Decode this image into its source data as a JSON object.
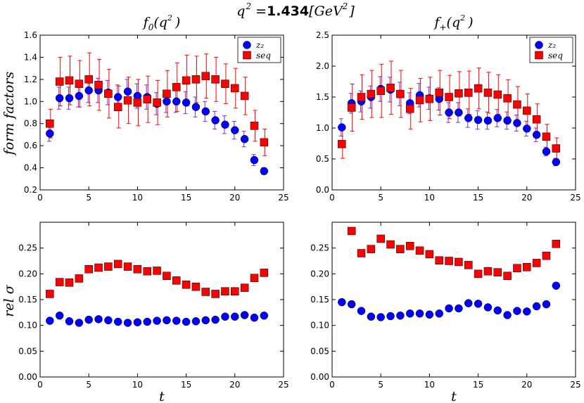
{
  "suptitle": {
    "prefix": "q",
    "sup": "2",
    "eq": "=",
    "value": "1.434",
    "unit_open": "[GeV",
    "unit_sup": "2",
    "unit_close": "]"
  },
  "colors": {
    "z2": "#0000ff",
    "seq": "#ff0000",
    "z2_err": "#7b2fd0",
    "seq_err": "#ff0000"
  },
  "chart_data": [
    {
      "type": "scatter",
      "title_main": "f",
      "title_sub": "0",
      "title_arg": "(q",
      "title_sup": "2",
      "title_close": ")",
      "xlim": [
        0,
        25
      ],
      "ylim": [
        0.2,
        1.6
      ],
      "xticks": [
        "0",
        "5",
        "10",
        "15",
        "20",
        "25"
      ],
      "yticks": [
        "0.2",
        "0.4",
        "0.6",
        "0.8",
        "1.0",
        "1.2",
        "1.4",
        "1.6"
      ],
      "ylabel": "form factors",
      "xlabel": "",
      "legend": [
        "z₂",
        "seq"
      ],
      "series": [
        {
          "name": "z₂",
          "x": [
            1,
            2,
            3,
            4,
            5,
            6,
            7,
            8,
            9,
            10,
            11,
            12,
            13,
            14,
            15,
            16,
            17,
            18,
            19,
            20,
            21,
            22,
            23
          ],
          "y": [
            0.71,
            1.03,
            1.03,
            1.05,
            1.1,
            1.1,
            1.08,
            1.04,
            1.09,
            1.05,
            1.04,
            0.98,
            1.0,
            1.0,
            0.99,
            0.95,
            0.91,
            0.83,
            0.79,
            0.74,
            0.66,
            0.47,
            0.37
          ],
          "err": [
            0.07,
            0.1,
            0.1,
            0.1,
            0.11,
            0.11,
            0.11,
            0.11,
            0.11,
            0.11,
            0.11,
            0.1,
            0.1,
            0.1,
            0.1,
            0.09,
            0.09,
            0.08,
            0.08,
            0.08,
            0.07,
            0.05,
            0.03
          ]
        },
        {
          "name": "seq",
          "x": [
            1,
            2,
            3,
            4,
            5,
            6,
            7,
            8,
            9,
            10,
            11,
            12,
            13,
            14,
            15,
            16,
            17,
            18,
            19,
            20,
            21,
            22,
            23
          ],
          "y": [
            0.8,
            1.18,
            1.19,
            1.16,
            1.2,
            1.15,
            1.07,
            0.95,
            1.01,
            0.99,
            1.02,
            0.99,
            1.07,
            1.13,
            1.19,
            1.2,
            1.23,
            1.2,
            1.16,
            1.12,
            1.05,
            0.78,
            0.63
          ],
          "err": [
            0.13,
            0.22,
            0.22,
            0.21,
            0.24,
            0.23,
            0.22,
            0.19,
            0.21,
            0.21,
            0.21,
            0.2,
            0.21,
            0.22,
            0.23,
            0.21,
            0.2,
            0.2,
            0.18,
            0.18,
            0.17,
            0.14,
            0.12
          ]
        }
      ]
    },
    {
      "type": "scatter",
      "title_main": "f",
      "title_sub": "+",
      "title_arg": "(q",
      "title_sup": "2",
      "title_close": ")",
      "xlim": [
        0,
        25
      ],
      "ylim": [
        0.0,
        2.5
      ],
      "xticks": [
        "0",
        "5",
        "10",
        "15",
        "20",
        "25"
      ],
      "yticks": [
        "0.0",
        "0.5",
        "1.0",
        "1.5",
        "2.0",
        "2.5"
      ],
      "ylabel": "",
      "xlabel": "",
      "legend": [
        "z₂",
        "seq"
      ],
      "series": [
        {
          "name": "z₂",
          "x": [
            1,
            2,
            3,
            4,
            5,
            6,
            7,
            8,
            9,
            10,
            11,
            12,
            13,
            14,
            15,
            16,
            17,
            18,
            19,
            20,
            21,
            22,
            23
          ],
          "y": [
            1.01,
            1.4,
            1.43,
            1.5,
            1.63,
            1.62,
            1.55,
            1.4,
            1.53,
            1.48,
            1.47,
            1.25,
            1.25,
            1.16,
            1.13,
            1.12,
            1.16,
            1.12,
            1.08,
            0.99,
            0.89,
            0.62,
            0.45
          ],
          "err": [
            0.14,
            0.16,
            0.17,
            0.18,
            0.2,
            0.2,
            0.19,
            0.17,
            0.19,
            0.18,
            0.18,
            0.16,
            0.16,
            0.15,
            0.15,
            0.14,
            0.14,
            0.14,
            0.13,
            0.12,
            0.11,
            0.07,
            0.06
          ]
        },
        {
          "name": "seq",
          "x": [
            1,
            2,
            3,
            4,
            5,
            6,
            7,
            8,
            9,
            10,
            11,
            12,
            13,
            14,
            15,
            16,
            17,
            18,
            19,
            20,
            21,
            22,
            23
          ],
          "y": [
            0.74,
            1.33,
            1.5,
            1.55,
            1.6,
            1.65,
            1.55,
            1.31,
            1.45,
            1.47,
            1.57,
            1.5,
            1.56,
            1.57,
            1.64,
            1.57,
            1.54,
            1.48,
            1.38,
            1.28,
            1.14,
            0.86,
            0.67
          ],
          "err": [
            0.23,
            0.38,
            0.36,
            0.38,
            0.43,
            0.43,
            0.38,
            0.33,
            0.35,
            0.35,
            0.36,
            0.35,
            0.35,
            0.35,
            0.33,
            0.33,
            0.32,
            0.3,
            0.29,
            0.27,
            0.25,
            0.2,
            0.17
          ]
        }
      ]
    },
    {
      "type": "scatter",
      "xlim": [
        0,
        25
      ],
      "ylim": [
        0.0,
        0.3
      ],
      "xticks": [
        "0",
        "5",
        "10",
        "15",
        "20",
        "25"
      ],
      "yticks": [
        "0.00",
        "0.05",
        "0.10",
        "0.15",
        "0.20",
        "0.25"
      ],
      "ylabel": "rel σ",
      "xlabel": "t",
      "series": [
        {
          "name": "z₂",
          "x": [
            1,
            2,
            3,
            4,
            5,
            6,
            7,
            8,
            9,
            10,
            11,
            12,
            13,
            14,
            15,
            16,
            17,
            18,
            19,
            20,
            21,
            22,
            23
          ],
          "y": [
            0.109,
            0.119,
            0.108,
            0.105,
            0.111,
            0.112,
            0.11,
            0.107,
            0.105,
            0.106,
            0.107,
            0.109,
            0.11,
            0.109,
            0.107,
            0.108,
            0.11,
            0.111,
            0.117,
            0.117,
            0.12,
            0.115,
            0.119
          ]
        },
        {
          "name": "seq",
          "x": [
            1,
            2,
            3,
            4,
            5,
            6,
            7,
            8,
            9,
            10,
            11,
            12,
            13,
            14,
            15,
            16,
            17,
            18,
            19,
            20,
            21,
            22,
            23
          ],
          "y": [
            0.161,
            0.184,
            0.183,
            0.191,
            0.209,
            0.212,
            0.214,
            0.219,
            0.214,
            0.209,
            0.205,
            0.206,
            0.196,
            0.187,
            0.179,
            0.175,
            0.165,
            0.161,
            0.166,
            0.166,
            0.173,
            0.192,
            0.202
          ]
        }
      ]
    },
    {
      "type": "scatter",
      "xlim": [
        0,
        25
      ],
      "ylim": [
        0.0,
        0.3
      ],
      "xticks": [
        "0",
        "5",
        "10",
        "15",
        "20",
        "25"
      ],
      "yticks": [
        "0.00",
        "0.05",
        "0.10",
        "0.15",
        "0.20",
        "0.25"
      ],
      "ylabel": "",
      "xlabel": "t",
      "series": [
        {
          "name": "z₂",
          "x": [
            1,
            2,
            3,
            4,
            5,
            6,
            7,
            8,
            9,
            10,
            11,
            12,
            13,
            14,
            15,
            16,
            17,
            18,
            19,
            20,
            21,
            22,
            23
          ],
          "y": [
            0.145,
            0.141,
            0.128,
            0.117,
            0.116,
            0.118,
            0.119,
            0.123,
            0.123,
            0.121,
            0.123,
            0.133,
            0.133,
            0.143,
            0.142,
            0.135,
            0.129,
            0.12,
            0.128,
            0.127,
            0.137,
            0.141,
            0.177
          ]
        },
        {
          "name": "seq",
          "x": [
            1,
            2,
            3,
            4,
            5,
            6,
            7,
            8,
            9,
            10,
            11,
            12,
            13,
            14,
            15,
            16,
            17,
            18,
            19,
            20,
            21,
            22,
            23
          ],
          "y": [
            null,
            0.283,
            0.24,
            0.248,
            0.268,
            0.257,
            0.248,
            0.254,
            0.245,
            0.238,
            0.226,
            0.225,
            0.223,
            0.217,
            0.2,
            0.205,
            0.203,
            0.196,
            0.211,
            0.213,
            0.221,
            0.235,
            0.258
          ]
        }
      ]
    }
  ]
}
